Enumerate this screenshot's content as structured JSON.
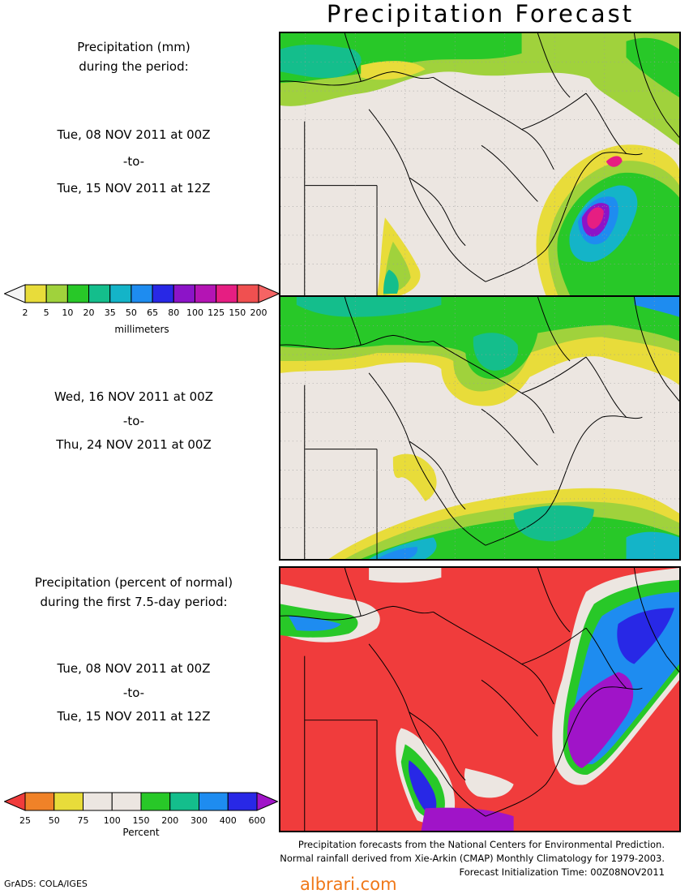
{
  "title": "Precipitation Forecast",
  "panel1": {
    "caption_line1": "Precipitation (mm)",
    "caption_line2": "during the period:",
    "start": "Tue, 08 NOV 2011 at 00Z",
    "sep": "-to-",
    "end": "Tue, 15 NOV 2011 at 12Z"
  },
  "panel2": {
    "start": "Wed, 16 NOV 2011 at 00Z",
    "sep": "-to-",
    "end": "Thu, 24 NOV 2011 at 00Z"
  },
  "panel3": {
    "caption_line1": "Precipitation (percent of normal)",
    "caption_line2": "during the first 7.5-day period:",
    "start": "Tue, 08 NOV 2011 at 00Z",
    "sep": "-to-",
    "end": "Tue, 15 NOV 2011 at 12Z"
  },
  "mm_scale": {
    "unit": "millimeters",
    "ticks": [
      "2",
      "5",
      "10",
      "20",
      "35",
      "50",
      "65",
      "80",
      "100",
      "125",
      "150",
      "200"
    ],
    "colors": [
      "#f5f5f5",
      "#e8dc3a",
      "#a0d23c",
      "#28c828",
      "#14be8c",
      "#14b4c8",
      "#1e8cf0",
      "#2828e6",
      "#8c14c8",
      "#b414b4",
      "#e61e82",
      "#f05050",
      "#f56464"
    ]
  },
  "pct_scale": {
    "unit": "Percent",
    "ticks": [
      "25",
      "50",
      "75",
      "100",
      "150",
      "200",
      "300",
      "400",
      "600"
    ],
    "colors": [
      "#f03c3c",
      "#f08228",
      "#e8dc3a",
      "#ece6e1",
      "#ece6e1",
      "#28c828",
      "#14be8c",
      "#1e8cf0",
      "#2828e6",
      "#a014c8"
    ]
  },
  "credits": {
    "line1": "Precipitation forecasts from the National Centers for Environmental Prediction.",
    "line2": "Normal rainfall derived from Xie-Arkin (CMAP) Monthly Climatology for 1979-2003.",
    "line3": "Forecast Initialization Time: 00Z08NOV2011"
  },
  "footer_left": "GrADS: COLA/IGES",
  "watermark": "albrari.com"
}
